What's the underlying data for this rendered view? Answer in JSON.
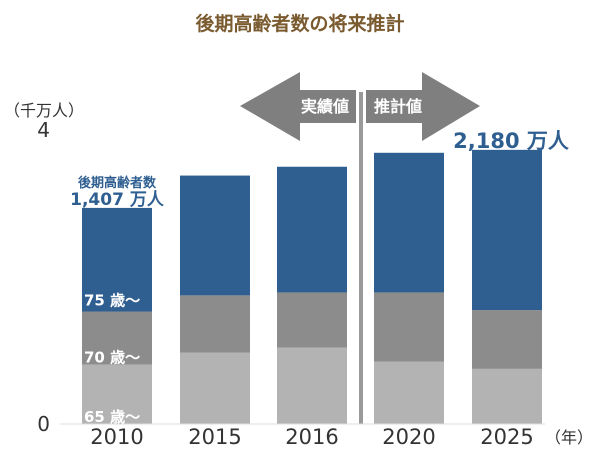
{
  "page": {
    "title": "後期高齢者数の将来推計"
  },
  "chart_data": {
    "type": "bar",
    "stacked": true,
    "title": "後期高齢者数の将来推計",
    "ylabel": "（千万人）",
    "x_unit": "（年）",
    "ylim": [
      0,
      4
    ],
    "yticks": [
      0,
      4
    ],
    "categories": [
      "2010",
      "2015",
      "2016",
      "2020",
      "2025"
    ],
    "series": [
      {
        "name": "65 歳～",
        "color": "#b3b3b3",
        "values": [
          0.81,
          0.97,
          1.04,
          0.85,
          0.75
        ]
      },
      {
        "name": "70 歳～",
        "color": "#8c8c8c",
        "values": [
          0.72,
          0.78,
          0.75,
          0.94,
          0.8
        ]
      },
      {
        "name": "75 歳～",
        "color": "#2f5f91",
        "values": [
          1.41,
          1.63,
          1.71,
          1.9,
          2.18
        ]
      }
    ],
    "annotations": {
      "group_label": "後期高齢者数",
      "start_value_label": "1,407 万人",
      "end_value_label": "2,180 万人"
    },
    "phases": {
      "actual_label": "実績値",
      "projection_label": "推計値",
      "colors": {
        "arrow": "#7f7f7f",
        "divider": "#9a9a9a"
      }
    }
  }
}
